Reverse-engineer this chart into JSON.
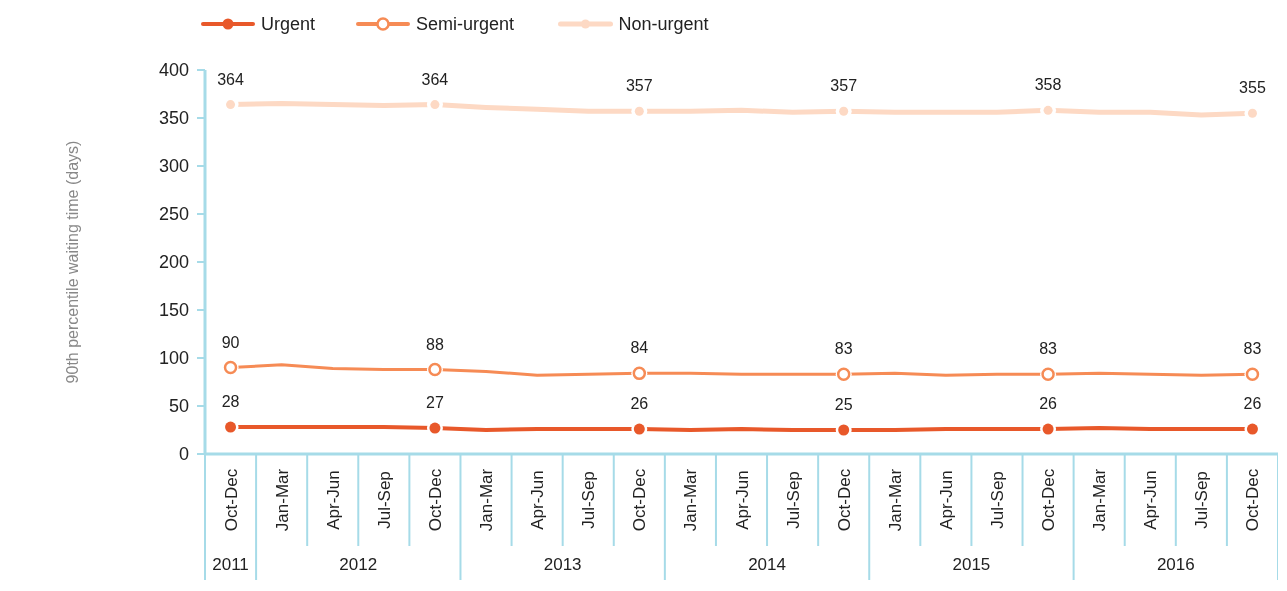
{
  "chart_data": {
    "type": "line",
    "ylabel": "90th percentile waiting time (days)",
    "categories": [
      "Oct-Dec",
      "Jan-Mar",
      "Apr-Jun",
      "Jul-Sep",
      "Oct-Dec",
      "Jan-Mar",
      "Apr-Jun",
      "Jul-Sep",
      "Oct-Dec",
      "Jan-Mar",
      "Apr-Jun",
      "Jul-Sep",
      "Oct-Dec",
      "Jan-Mar",
      "Apr-Jun",
      "Jul-Sep",
      "Oct-Dec",
      "Jan-Mar",
      "Apr-Jun",
      "Jul-Sep",
      "Oct-Dec"
    ],
    "annotations": [
      "2011",
      "2012",
      "2013",
      "2014",
      "2015",
      "2016"
    ],
    "ylim": [
      0,
      400
    ],
    "yticks": [
      0,
      50,
      100,
      150,
      200,
      250,
      300,
      350,
      400
    ],
    "grid": false,
    "legend": "top left",
    "line_style": "solid",
    "series": [
      {
        "name": "Urgent",
        "color": "#e8582a",
        "values": [
          28,
          28,
          28,
          28,
          27,
          25,
          26,
          26,
          26,
          25,
          26,
          25,
          25,
          25,
          26,
          26,
          26,
          27,
          26,
          26,
          26
        ],
        "value_labels": [
          "28",
          null,
          null,
          null,
          "27",
          null,
          null,
          null,
          "26",
          null,
          null,
          null,
          "25",
          null,
          null,
          null,
          "26",
          null,
          null,
          null,
          "26"
        ]
      },
      {
        "name": "Semi-urgent",
        "color": "#f68b55",
        "values": [
          90,
          93,
          89,
          88,
          88,
          86,
          82,
          83,
          84,
          84,
          83,
          83,
          83,
          84,
          82,
          83,
          83,
          84,
          83,
          82,
          83
        ],
        "value_labels": [
          "90",
          null,
          null,
          null,
          "88",
          null,
          null,
          null,
          "84",
          null,
          null,
          null,
          "83",
          null,
          null,
          null,
          "83",
          null,
          null,
          null,
          "83"
        ]
      },
      {
        "name": "Non-urgent",
        "color": "#fdd9c4",
        "values": [
          364,
          365,
          364,
          363,
          364,
          361,
          359,
          357,
          357,
          357,
          358,
          356,
          357,
          356,
          356,
          356,
          358,
          356,
          356,
          353,
          355
        ],
        "value_labels": [
          "364",
          null,
          null,
          null,
          "364",
          null,
          null,
          null,
          "357",
          null,
          null,
          null,
          "357",
          null,
          null,
          null,
          "358",
          null,
          null,
          null,
          "355"
        ]
      }
    ]
  }
}
